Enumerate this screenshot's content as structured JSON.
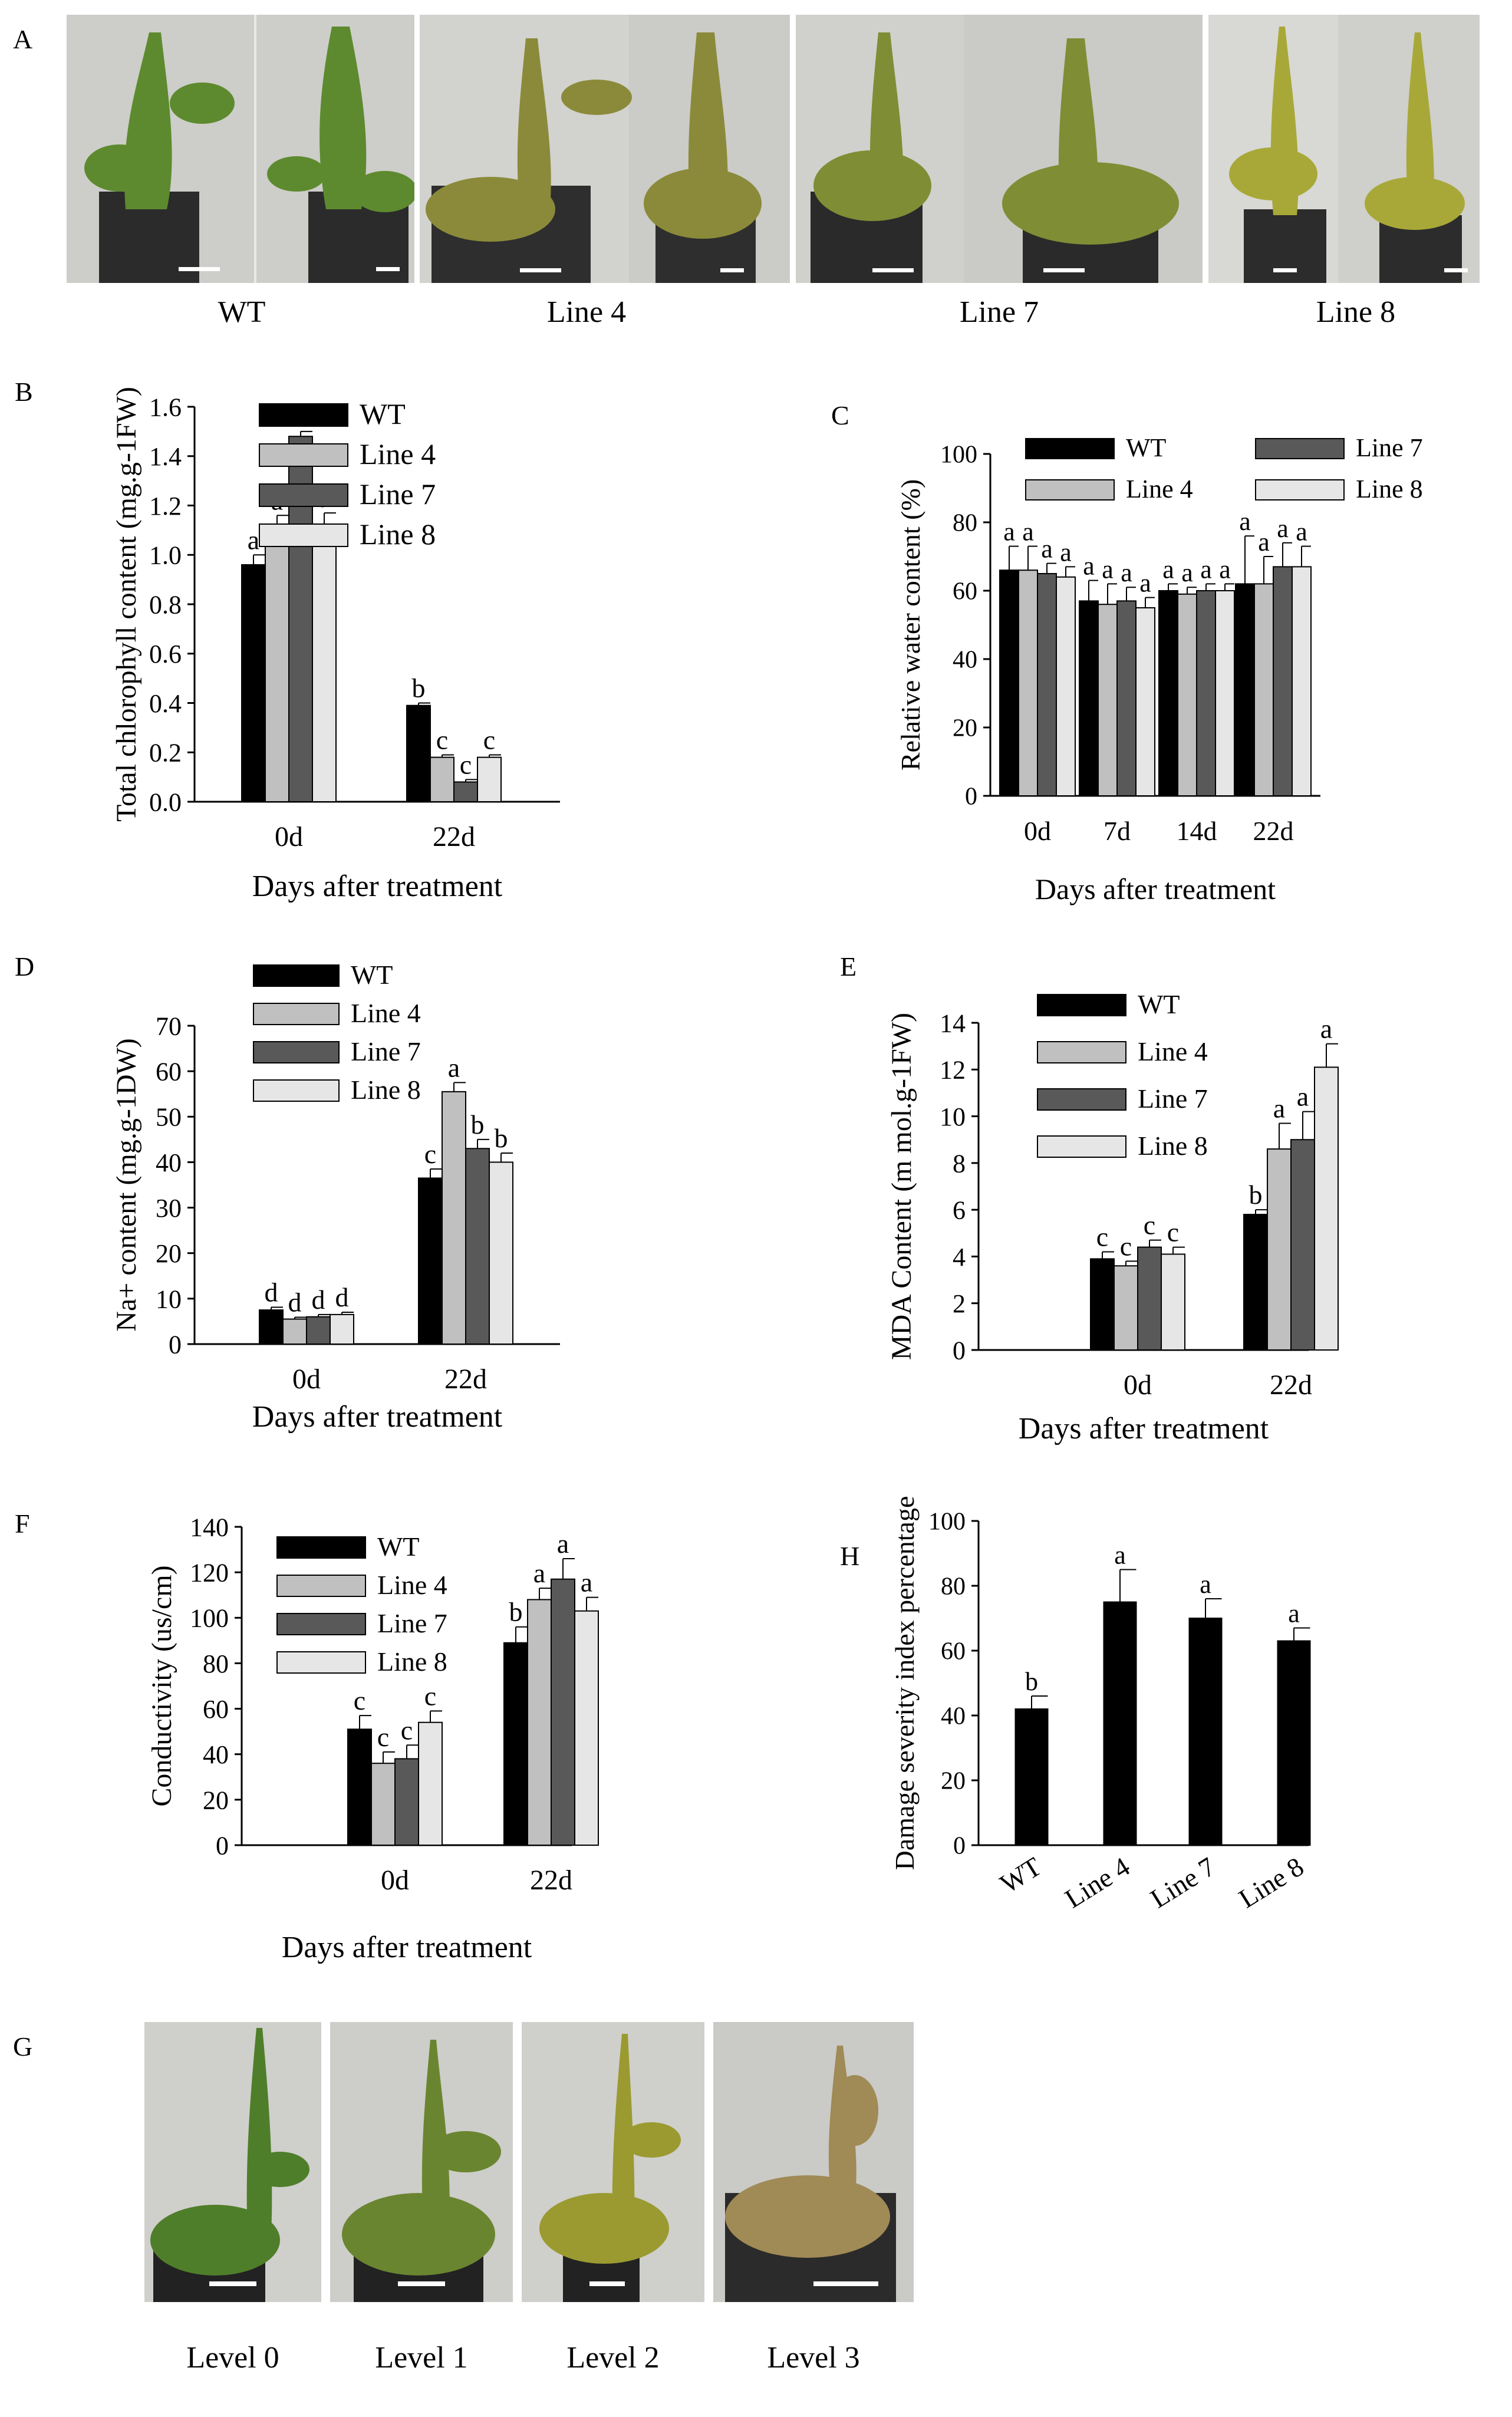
{
  "panels": {
    "a": {
      "letter": "A",
      "captions": [
        "WT",
        "Line 4",
        "Line 7",
        "Line 8"
      ],
      "plant_colors": [
        "#5d8a2e",
        "#8a8a3a",
        "#7f8d35",
        "#a8a838"
      ]
    },
    "g": {
      "letter": "G",
      "captions": [
        "Level 0",
        "Level 1",
        "Level 2",
        "Level 3"
      ],
      "plant_colors": [
        "#4f7e2a",
        "#6a8530",
        "#9a9a30",
        "#a08a55"
      ]
    }
  },
  "legend_colors": {
    "WT": "#000000",
    "Line 4": "#c0c0c0",
    "Line 7": "#595959",
    "Line 8": "#e6e6e6"
  },
  "chart_data": [
    {
      "id": "B",
      "letter": "B",
      "type": "bar",
      "ylabel": "Total chlorophyll content (mg.g-1FW)",
      "xlabel": "Days after treatment",
      "categories": [
        "0d",
        "22d"
      ],
      "ylim": [
        0,
        1.6
      ],
      "yticks": [
        "0.0",
        "0.2",
        "0.4",
        "0.6",
        "0.8",
        "1.0",
        "1.2",
        "1.4",
        "1.6"
      ],
      "legend": [
        "WT",
        "Line 4",
        "Line 7",
        "Line 8"
      ],
      "series": [
        {
          "name": "WT",
          "values": [
            0.96,
            0.39
          ],
          "errors": [
            0.04,
            0.01
          ],
          "letters": [
            "a",
            "b"
          ]
        },
        {
          "name": "Line 4",
          "values": [
            1.11,
            0.18
          ],
          "errors": [
            0.05,
            0.01
          ],
          "letters": [
            "a",
            "c"
          ]
        },
        {
          "name": "Line 7",
          "values": [
            1.48,
            0.08
          ],
          "errors": [
            0.02,
            0.01
          ],
          "letters": [
            "a",
            "c"
          ]
        },
        {
          "name": "Line 8",
          "values": [
            1.12,
            0.18
          ],
          "errors": [
            0.05,
            0.01
          ],
          "letters": [
            "a",
            "c"
          ]
        }
      ]
    },
    {
      "id": "C",
      "letter": "C",
      "type": "bar",
      "ylabel": "Relative water content (%)",
      "xlabel": "Days after treatment",
      "categories": [
        "0d",
        "7d",
        "14d",
        "22d"
      ],
      "ylim": [
        0,
        100
      ],
      "yticks": [
        "0",
        "20",
        "40",
        "60",
        "80",
        "100"
      ],
      "legend": [
        "WT",
        "Line 4",
        "Line 7",
        "Line 8"
      ],
      "series": [
        {
          "name": "WT",
          "values": [
            66,
            57,
            60,
            62
          ],
          "errors": [
            7,
            6,
            2,
            14
          ],
          "letters": [
            "a",
            "a",
            "a",
            "a"
          ]
        },
        {
          "name": "Line 4",
          "values": [
            66,
            56,
            59,
            62
          ],
          "errors": [
            7,
            6,
            2,
            8
          ],
          "letters": [
            "a",
            "a",
            "a",
            "a"
          ]
        },
        {
          "name": "Line 7",
          "values": [
            65,
            57,
            60,
            67
          ],
          "errors": [
            3,
            4,
            2,
            7
          ],
          "letters": [
            "a",
            "a",
            "a",
            "a"
          ]
        },
        {
          "name": "Line 8",
          "values": [
            64,
            55,
            60,
            67
          ],
          "errors": [
            3,
            3,
            2,
            6
          ],
          "letters": [
            "a",
            "a",
            "a",
            "a"
          ]
        }
      ]
    },
    {
      "id": "D",
      "letter": "D",
      "type": "bar",
      "ylabel": "Na+ content (mg.g-1DW)",
      "xlabel": "Days after treatment",
      "categories": [
        "0d",
        "22d"
      ],
      "ylim": [
        0,
        70
      ],
      "yticks": [
        "0",
        "10",
        "20",
        "30",
        "40",
        "50",
        "60",
        "70"
      ],
      "legend": [
        "WT",
        "Line 4",
        "Line 7",
        "Line 8"
      ],
      "series": [
        {
          "name": "WT",
          "values": [
            7.5,
            36.5
          ],
          "errors": [
            0.6,
            2.0
          ],
          "letters": [
            "d",
            "c"
          ]
        },
        {
          "name": "Line 4",
          "values": [
            5.5,
            55.5
          ],
          "errors": [
            0.4,
            2.0
          ],
          "letters": [
            "d",
            "a"
          ]
        },
        {
          "name": "Line 7",
          "values": [
            6.0,
            43.0
          ],
          "errors": [
            0.5,
            2.0
          ],
          "letters": [
            "d",
            "b"
          ]
        },
        {
          "name": "Line 8",
          "values": [
            6.5,
            40.0
          ],
          "errors": [
            0.5,
            2.0
          ],
          "letters": [
            "d",
            "b"
          ]
        }
      ]
    },
    {
      "id": "E",
      "letter": "E",
      "type": "bar",
      "ylabel": "MDA Content (m mol.g-1FW)",
      "xlabel": "Days after treatment",
      "categories": [
        "0d",
        "22d"
      ],
      "ylim": [
        0,
        14
      ],
      "yticks": [
        "0",
        "2",
        "4",
        "6",
        "8",
        "10",
        "12",
        "14"
      ],
      "legend": [
        "WT",
        "Line 4",
        "Line 7",
        "Line 8"
      ],
      "series": [
        {
          "name": "WT",
          "values": [
            3.9,
            5.8
          ],
          "errors": [
            0.3,
            0.2
          ],
          "letters": [
            "c",
            "b"
          ]
        },
        {
          "name": "Line 4",
          "values": [
            3.6,
            8.6
          ],
          "errors": [
            0.2,
            1.1
          ],
          "letters": [
            "c",
            "a"
          ]
        },
        {
          "name": "Line 7",
          "values": [
            4.4,
            9.0
          ],
          "errors": [
            0.3,
            1.2
          ],
          "letters": [
            "c",
            "a"
          ]
        },
        {
          "name": "Line 8",
          "values": [
            4.1,
            12.1
          ],
          "errors": [
            0.3,
            1.0
          ],
          "letters": [
            "c",
            "a"
          ]
        }
      ]
    },
    {
      "id": "F",
      "letter": "F",
      "type": "bar",
      "ylabel": "Conductivity (us/cm)",
      "xlabel": "Days after treatment",
      "categories": [
        "0d",
        "22d"
      ],
      "ylim": [
        0,
        140
      ],
      "yticks": [
        "0",
        "20",
        "40",
        "60",
        "80",
        "100",
        "120",
        "140"
      ],
      "legend": [
        "WT",
        "Line 4",
        "Line 7",
        "Line 8"
      ],
      "series": [
        {
          "name": "WT",
          "values": [
            51,
            89
          ],
          "errors": [
            6,
            7
          ],
          "letters": [
            "c",
            "b"
          ]
        },
        {
          "name": "Line 4",
          "values": [
            36,
            108
          ],
          "errors": [
            5,
            5
          ],
          "letters": [
            "c",
            "a"
          ]
        },
        {
          "name": "Line 7",
          "values": [
            38,
            117
          ],
          "errors": [
            6,
            9
          ],
          "letters": [
            "c",
            "a"
          ]
        },
        {
          "name": "Line 8",
          "values": [
            54,
            103
          ],
          "errors": [
            5,
            6
          ],
          "letters": [
            "c",
            "a"
          ]
        }
      ]
    },
    {
      "id": "H",
      "letter": "H",
      "type": "bar",
      "ylabel": "Damage severity index percentage",
      "xlabel": "",
      "categories": [
        "WT",
        "Line 4",
        "Line 7",
        "Line 8"
      ],
      "ylim": [
        0,
        100
      ],
      "yticks": [
        "0",
        "20",
        "40",
        "60",
        "80",
        "100"
      ],
      "legend": [],
      "series": [
        {
          "name": "Damage severity index",
          "values": [
            42,
            75,
            70,
            63
          ],
          "errors": [
            4,
            10,
            6,
            4
          ],
          "letters": [
            "b",
            "a",
            "a",
            "a"
          ]
        }
      ]
    }
  ]
}
